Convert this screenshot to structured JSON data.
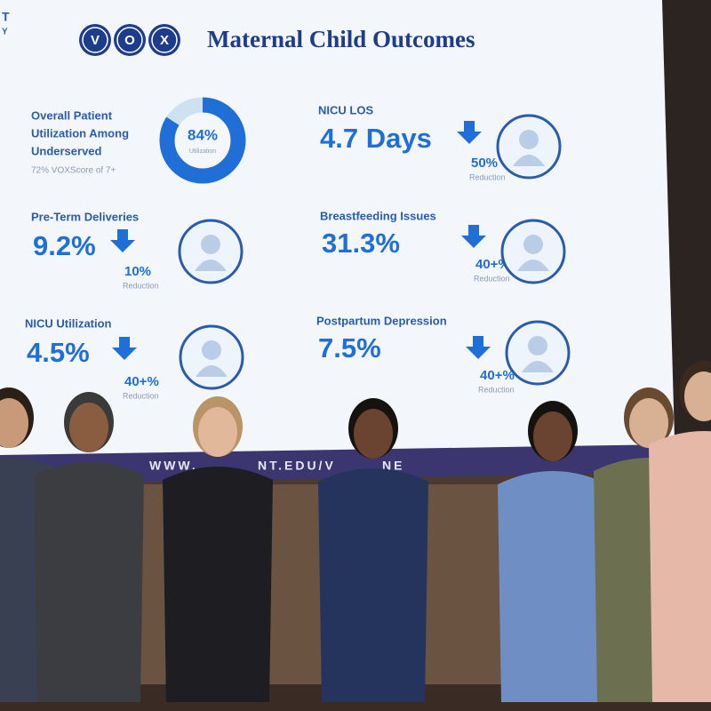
{
  "logo_fragments": [
    "T",
    "Y"
  ],
  "slide": {
    "brand": [
      "V",
      "O",
      "X"
    ],
    "title": "Maternal Child Outcomes",
    "metrics": [
      {
        "label": [
          "Overall Patient",
          "Utilization Among",
          "Underserved"
        ],
        "note": "72% VOXScore of 7+",
        "donut": {
          "value": 84,
          "value_label": "84%",
          "caption": "Utilization"
        }
      },
      {
        "label": [
          "NICU LOS"
        ],
        "value": "4.7 Days",
        "change": "50%",
        "change_note": "Reduction"
      },
      {
        "label": [
          "Pre-Term Deliveries"
        ],
        "value": "9.2%",
        "change": "10%",
        "change_note": "Reduction"
      },
      {
        "label": [
          "Breastfeeding Issues"
        ],
        "value": "31.3%",
        "change": "40+%",
        "change_note": "Reduction"
      },
      {
        "label": [
          "NICU Utilization"
        ],
        "value": "4.5%",
        "change": "40+%",
        "change_note": "Reduction"
      },
      {
        "label": [
          "Postpartum Depression"
        ],
        "value": "7.5%",
        "change": "40+%",
        "change_note": "Reduction"
      }
    ],
    "banner": [
      "WWW.",
      "NT.EDU/V",
      "NE"
    ]
  }
}
